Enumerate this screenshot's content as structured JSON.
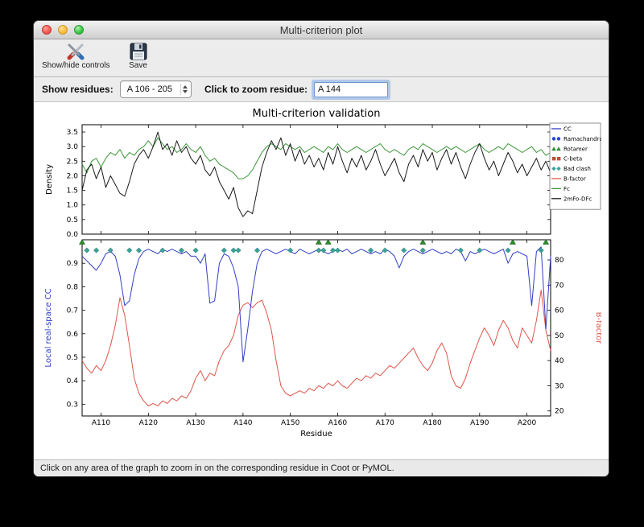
{
  "window": {
    "title": "Multi-criterion plot",
    "toolbar": {
      "show_hide_label": "Show/hide controls",
      "save_label": "Save"
    },
    "controls": {
      "show_residues_label": "Show residues:",
      "residue_range_value": "A 106 - 205",
      "zoom_residue_label": "Click to zoom residue:",
      "zoom_residue_value": "A 144"
    },
    "status_text": "Click on any area of the graph to zoom in on the corresponding residue in Coot or PyMOL."
  },
  "chart_data": {
    "type": "line",
    "title": "Multi-criterion validation",
    "xlabel": "Residue",
    "x_range": [
      106,
      205
    ],
    "xtick_values": [
      110,
      120,
      130,
      140,
      150,
      160,
      170,
      180,
      190,
      200
    ],
    "xtick_labels": [
      "A110",
      "A120",
      "A130",
      "A140",
      "A150",
      "A160",
      "A170",
      "A180",
      "A190",
      "A200"
    ],
    "top_plot": {
      "ylabel": "Density",
      "ylim": [
        0,
        3.75
      ],
      "yticks": [
        0,
        0.5,
        1,
        1.5,
        2,
        2.5,
        3,
        3.5
      ],
      "series": [
        {
          "name": "Fc",
          "color": "#3c9639",
          "values": [
            2.4,
            2.1,
            2.5,
            2.6,
            2.3,
            2.6,
            2.8,
            2.7,
            2.9,
            2.6,
            2.8,
            2.7,
            2.9,
            3.0,
            3.2,
            3.0,
            3.3,
            3.1,
            2.9,
            3.0,
            2.8,
            2.9,
            3.1,
            2.9,
            2.8,
            3.0,
            2.7,
            2.5,
            2.6,
            2.4,
            2.3,
            2.2,
            2.1,
            1.9,
            1.9,
            2.0,
            2.2,
            2.5,
            2.8,
            3.0,
            3.1,
            3.0,
            2.9,
            3.1,
            3.0,
            2.9,
            3.0,
            2.8,
            2.9,
            3.0,
            2.9,
            2.8,
            3.0,
            2.9,
            3.1,
            2.9,
            2.8,
            2.9,
            3.0,
            2.9,
            2.8,
            2.9,
            3.0,
            3.1,
            2.9,
            2.8,
            2.9,
            2.8,
            2.7,
            2.9,
            3.0,
            2.9,
            3.1,
            3.0,
            2.9,
            2.8,
            2.9,
            3.0,
            2.9,
            3.0,
            2.9,
            2.8,
            2.9,
            3.0,
            3.1,
            2.9,
            2.8,
            2.9,
            3.0,
            2.9,
            3.1,
            3.0,
            2.9,
            2.8,
            2.9,
            3.0,
            2.8,
            2.9,
            2.7,
            2.8
          ]
        },
        {
          "name": "2mFo-DFc",
          "color": "#1a1a1a",
          "values": [
            1.5,
            2.2,
            2.4,
            1.9,
            2.3,
            1.6,
            2.0,
            1.7,
            1.4,
            1.3,
            1.8,
            2.4,
            2.7,
            2.9,
            2.6,
            3.0,
            3.5,
            2.9,
            3.1,
            2.7,
            3.2,
            2.8,
            3.0,
            2.6,
            2.4,
            2.7,
            2.2,
            2.0,
            2.3,
            1.8,
            1.5,
            1.2,
            1.6,
            0.9,
            0.6,
            0.8,
            0.7,
            1.5,
            2.3,
            2.8,
            3.2,
            2.9,
            3.3,
            2.7,
            3.1,
            2.5,
            2.9,
            2.4,
            2.7,
            2.3,
            2.6,
            2.2,
            2.8,
            2.4,
            3.0,
            2.5,
            2.1,
            2.6,
            2.3,
            2.7,
            2.2,
            2.5,
            2.9,
            2.4,
            2.0,
            2.3,
            2.6,
            2.1,
            1.8,
            2.4,
            2.7,
            2.3,
            2.9,
            2.5,
            2.8,
            2.2,
            2.6,
            2.9,
            2.4,
            2.8,
            2.3,
            1.9,
            2.4,
            2.8,
            3.1,
            2.6,
            2.2,
            2.5,
            2.0,
            2.4,
            2.8,
            2.5,
            2.1,
            2.4,
            2.0,
            2.3,
            2.6,
            2.2,
            2.5,
            2.1
          ]
        }
      ]
    },
    "bottom_plot": {
      "left_ylabel": "Local real-space CC",
      "left_color": "#3140c4",
      "left_ylim": [
        0.25,
        1.0
      ],
      "left_yticks": [
        0.3,
        0.4,
        0.5,
        0.6,
        0.7,
        0.8,
        0.9
      ],
      "right_ylabel": "B-factor",
      "right_color": "#e0564a",
      "right_ylim": [
        18,
        88
      ],
      "right_yticks": [
        20,
        30,
        40,
        50,
        60,
        70,
        80
      ],
      "cc_values": [
        0.93,
        0.91,
        0.89,
        0.87,
        0.9,
        0.94,
        0.95,
        0.93,
        0.85,
        0.72,
        0.74,
        0.85,
        0.92,
        0.95,
        0.96,
        0.95,
        0.94,
        0.96,
        0.95,
        0.96,
        0.95,
        0.94,
        0.95,
        0.93,
        0.93,
        0.9,
        0.94,
        0.73,
        0.74,
        0.9,
        0.94,
        0.93,
        0.88,
        0.8,
        0.48,
        0.62,
        0.78,
        0.9,
        0.95,
        0.96,
        0.95,
        0.94,
        0.95,
        0.96,
        0.95,
        0.94,
        0.96,
        0.95,
        0.94,
        0.95,
        0.96,
        0.95,
        0.94,
        0.95,
        0.96,
        0.95,
        0.96,
        0.94,
        0.95,
        0.96,
        0.95,
        0.94,
        0.95,
        0.94,
        0.96,
        0.95,
        0.93,
        0.88,
        0.93,
        0.95,
        0.96,
        0.95,
        0.94,
        0.95,
        0.96,
        0.95,
        0.94,
        0.95,
        0.94,
        0.96,
        0.95,
        0.91,
        0.95,
        0.94,
        0.95,
        0.96,
        0.95,
        0.94,
        0.95,
        0.96,
        0.9,
        0.94,
        0.95,
        0.94,
        0.93,
        0.72,
        0.95,
        0.97,
        0.62,
        0.93
      ],
      "bfactor_values": [
        40,
        37,
        35,
        38,
        36,
        40,
        46,
        54,
        65,
        58,
        46,
        33,
        27,
        24,
        22,
        23,
        22,
        24,
        23,
        25,
        24,
        26,
        25,
        28,
        33,
        36,
        32,
        35,
        34,
        40,
        44,
        46,
        50,
        58,
        62,
        63,
        61,
        63,
        64,
        59,
        52,
        40,
        30,
        27,
        26,
        27,
        28,
        27,
        29,
        28,
        30,
        29,
        31,
        30,
        32,
        30,
        29,
        31,
        33,
        32,
        34,
        33,
        35,
        34,
        36,
        38,
        37,
        39,
        41,
        43,
        45,
        41,
        38,
        36,
        39,
        44,
        47,
        43,
        34,
        30,
        29,
        33,
        39,
        44,
        49,
        53,
        50,
        46,
        52,
        56,
        53,
        48,
        45,
        53,
        50,
        47,
        56,
        68,
        52,
        44
      ],
      "markers": {
        "bad_clash": {
          "color": "#3aa39b",
          "residues": [
            107,
            109,
            112,
            116,
            118,
            123,
            127,
            130,
            136,
            138,
            139,
            143,
            150,
            156,
            157,
            159,
            160,
            167,
            170,
            174,
            178,
            186,
            190,
            196,
            203
          ]
        },
        "rotamer": {
          "color": "#2e8b2e",
          "residues": [
            106,
            156,
            158,
            178,
            197,
            204
          ]
        }
      }
    },
    "legend": {
      "entries": [
        {
          "label": "CC",
          "glyph": "line",
          "color": "#3140c4"
        },
        {
          "label": "Ramachandran",
          "glyph": "circles",
          "color": "#2743d0"
        },
        {
          "label": "Rotamer",
          "glyph": "triangles",
          "color": "#2e8b2e"
        },
        {
          "label": "C-beta",
          "glyph": "squares",
          "color": "#cc4936"
        },
        {
          "label": "Bad clash",
          "glyph": "diamonds",
          "color": "#3aa39b"
        },
        {
          "label": "B-factor",
          "glyph": "line",
          "color": "#e0564a"
        },
        {
          "label": "Fc",
          "glyph": "line",
          "color": "#3c9639"
        },
        {
          "label": "2mFo-DFc",
          "glyph": "line",
          "color": "#1a1a1a"
        }
      ]
    }
  }
}
